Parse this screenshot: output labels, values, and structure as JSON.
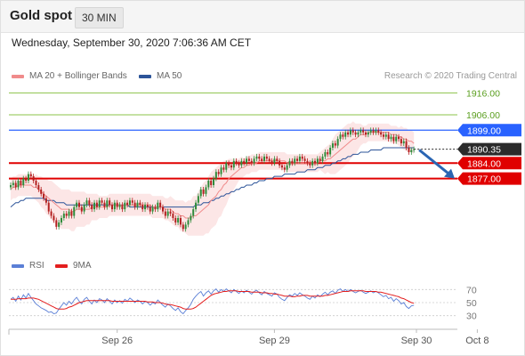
{
  "header": {
    "title": "Gold spot",
    "timeframe": "30 MIN"
  },
  "datetime": "Wednesday, September 30, 2020 7:06:36 AM CET",
  "legend": {
    "ma20": {
      "label": "MA 20 + Bollinger Bands",
      "color": "#f08b8b"
    },
    "ma50": {
      "label": "MA 50",
      "color": "#2c5499"
    },
    "rsi": {
      "label": "RSI",
      "color": "#5b7fd6"
    },
    "nine_ma": {
      "label": "9MA",
      "color": "#e31e1e"
    }
  },
  "credit": "Research © 2020 Trading Central",
  "colors": {
    "up": "#2e8b3a",
    "down": "#b32020",
    "resistance": "#8bc34a",
    "support": "#e00000",
    "pivot": "#2962ff",
    "current": "#2b2b2b"
  },
  "chart_data": {
    "type": "candlestick",
    "instrument": "Gold spot",
    "timeframe": "30 MIN",
    "ylim": [
      1844,
      1921
    ],
    "x_labels": [
      {
        "label": "Sep 26",
        "index": 42
      },
      {
        "label": "Sep 29",
        "index": 104
      },
      {
        "label": "Sep 30",
        "index": 160
      },
      {
        "label": "Oct 8",
        "index": 184
      }
    ],
    "levels": [
      {
        "value": "1916.00",
        "kind": "resistance"
      },
      {
        "value": "1906.00",
        "kind": "resistance"
      },
      {
        "value": "1899.00",
        "kind": "pivot"
      },
      {
        "value": "1890.35",
        "kind": "current"
      },
      {
        "value": "1884.00",
        "kind": "support"
      },
      {
        "value": "1877.00",
        "kind": "support"
      }
    ],
    "close": [
      1874,
      1875,
      1873,
      1876,
      1874,
      1877,
      1876,
      1879,
      1878,
      1876,
      1874,
      1872,
      1870,
      1868,
      1866,
      1862,
      1860,
      1858,
      1855,
      1857,
      1859,
      1861,
      1860,
      1862,
      1860,
      1864,
      1866,
      1864,
      1862,
      1865,
      1867,
      1865,
      1863,
      1866,
      1864,
      1867,
      1866,
      1864,
      1867,
      1865,
      1863,
      1866,
      1864,
      1865,
      1863,
      1866,
      1865,
      1867,
      1866,
      1864,
      1866,
      1865,
      1863,
      1865,
      1864,
      1862,
      1864,
      1863,
      1866,
      1864,
      1862,
      1860,
      1862,
      1861,
      1859,
      1857,
      1859,
      1856,
      1854,
      1856,
      1858,
      1860,
      1863,
      1866,
      1869,
      1872,
      1870,
      1873,
      1876,
      1874,
      1877,
      1880,
      1879,
      1882,
      1881,
      1884,
      1883,
      1882,
      1885,
      1884,
      1883,
      1885,
      1884,
      1886,
      1885,
      1884,
      1886,
      1887,
      1886,
      1885,
      1887,
      1886,
      1885,
      1884,
      1886,
      1885,
      1883,
      1882,
      1881,
      1883,
      1885,
      1884,
      1886,
      1885,
      1887,
      1886,
      1885,
      1884,
      1883,
      1885,
      1884,
      1886,
      1885,
      1887,
      1889,
      1888,
      1891,
      1893,
      1892,
      1895,
      1897,
      1896,
      1898,
      1897,
      1899,
      1898,
      1897,
      1898,
      1899,
      1898,
      1897,
      1898,
      1899,
      1898,
      1899,
      1898,
      1897,
      1896,
      1897,
      1895,
      1896,
      1894,
      1896,
      1895,
      1893,
      1894,
      1891,
      1889,
      1890,
      1890.35
    ],
    "ma20": [
      1872,
      1873,
      1873,
      1874,
      1874,
      1874,
      1874,
      1874,
      1874,
      1873,
      1873,
      1872,
      1871,
      1870,
      1869,
      1868,
      1867,
      1866,
      1865,
      1864,
      1863,
      1863,
      1863,
      1863,
      1862,
      1862,
      1863,
      1863,
      1863,
      1863,
      1863,
      1863,
      1864,
      1864,
      1864,
      1864,
      1864,
      1864,
      1864,
      1865,
      1865,
      1865,
      1865,
      1865,
      1865,
      1865,
      1865,
      1865,
      1865,
      1865,
      1865,
      1865,
      1865,
      1865,
      1865,
      1865,
      1864,
      1864,
      1864,
      1864,
      1864,
      1863,
      1863,
      1863,
      1862,
      1861,
      1861,
      1860,
      1860,
      1859,
      1859,
      1859,
      1860,
      1860,
      1861,
      1862,
      1863,
      1864,
      1865,
      1867,
      1868,
      1869,
      1871,
      1872,
      1874,
      1875,
      1877,
      1878,
      1879,
      1880,
      1881,
      1882,
      1882,
      1883,
      1883,
      1884,
      1884,
      1884,
      1885,
      1885,
      1885,
      1885,
      1885,
      1885,
      1885,
      1885,
      1885,
      1885,
      1885,
      1884,
      1884,
      1884,
      1884,
      1884,
      1884,
      1884,
      1884,
      1884,
      1884,
      1884,
      1884,
      1884,
      1885,
      1885,
      1885,
      1886,
      1886,
      1887,
      1888,
      1889,
      1890,
      1891,
      1892,
      1893,
      1894,
      1895,
      1895,
      1896,
      1897,
      1897,
      1897,
      1898,
      1898,
      1898,
      1898,
      1898,
      1898,
      1898,
      1898,
      1898,
      1897,
      1897,
      1897,
      1896,
      1896,
      1895,
      1895,
      1894,
      1894,
      1893
    ],
    "ma50": [
      1864,
      1865,
      1866,
      1866,
      1867,
      1867,
      1868,
      1868,
      1868,
      1868,
      1868,
      1868,
      1868,
      1868,
      1867,
      1867,
      1867,
      1867,
      1866,
      1866,
      1866,
      1866,
      1865,
      1865,
      1865,
      1865,
      1865,
      1865,
      1865,
      1865,
      1865,
      1865,
      1865,
      1865,
      1865,
      1865,
      1865,
      1865,
      1865,
      1865,
      1865,
      1865,
      1865,
      1865,
      1865,
      1865,
      1865,
      1864,
      1864,
      1864,
      1864,
      1864,
      1864,
      1864,
      1864,
      1864,
      1864,
      1864,
      1864,
      1864,
      1864,
      1864,
      1864,
      1864,
      1864,
      1864,
      1864,
      1864,
      1864,
      1864,
      1864,
      1864,
      1864,
      1865,
      1865,
      1865,
      1866,
      1866,
      1866,
      1867,
      1867,
      1868,
      1868,
      1869,
      1869,
      1870,
      1870,
      1871,
      1871,
      1872,
      1872,
      1873,
      1873,
      1874,
      1874,
      1874,
      1875,
      1875,
      1876,
      1876,
      1876,
      1877,
      1877,
      1877,
      1878,
      1878,
      1878,
      1878,
      1879,
      1879,
      1879,
      1879,
      1879,
      1880,
      1880,
      1880,
      1880,
      1881,
      1881,
      1881,
      1881,
      1882,
      1882,
      1882,
      1883,
      1883,
      1883,
      1884,
      1884,
      1885,
      1885,
      1886,
      1886,
      1887,
      1887,
      1888,
      1888,
      1888,
      1889,
      1889,
      1889,
      1889,
      1890,
      1890,
      1890,
      1890,
      1890,
      1891,
      1891,
      1891,
      1891,
      1891,
      1891,
      1891,
      1891,
      1891,
      1891,
      1891,
      1891,
      1891
    ],
    "bb_width": [
      5,
      5,
      5,
      5,
      5,
      5,
      5,
      5,
      5,
      5,
      6,
      6,
      7,
      7,
      8,
      8,
      9,
      9,
      9,
      9,
      9,
      9,
      9,
      9,
      9,
      9,
      8,
      8,
      8,
      8,
      7,
      7,
      6,
      6,
      6,
      5,
      5,
      5,
      5,
      5,
      5,
      5,
      5,
      5,
      5,
      5,
      5,
      5,
      5,
      5,
      5,
      5,
      5,
      5,
      5,
      5,
      5,
      5,
      5,
      5,
      5,
      5,
      5,
      6,
      6,
      6,
      6,
      7,
      7,
      7,
      8,
      8,
      9,
      9,
      10,
      11,
      12,
      12,
      13,
      13,
      13,
      13,
      12,
      12,
      11,
      10,
      9,
      8,
      7,
      6,
      5,
      5,
      4,
      4,
      4,
      4,
      4,
      4,
      4,
      4,
      4,
      4,
      4,
      4,
      4,
      4,
      4,
      4,
      4,
      4,
      4,
      4,
      4,
      4,
      4,
      4,
      4,
      4,
      4,
      4,
      4,
      4,
      4,
      5,
      6,
      6,
      7,
      8,
      9,
      9,
      9,
      9,
      9,
      9,
      8,
      8,
      7,
      6,
      5,
      4,
      4,
      4,
      4,
      4,
      4,
      4,
      4,
      4,
      4,
      4,
      4,
      4,
      4,
      4,
      5,
      5,
      5,
      5,
      5,
      5
    ],
    "rsi_levels": [
      "70",
      "50",
      "30"
    ],
    "rsi": [
      55,
      58,
      52,
      60,
      54,
      62,
      57,
      64,
      58,
      53,
      48,
      45,
      42,
      40,
      38,
      35,
      36,
      33,
      34,
      40,
      45,
      50,
      46,
      52,
      48,
      54,
      58,
      52,
      48,
      55,
      58,
      52,
      48,
      54,
      50,
      56,
      54,
      50,
      56,
      52,
      48,
      54,
      50,
      53,
      49,
      55,
      52,
      57,
      54,
      50,
      54,
      52,
      48,
      52,
      50,
      46,
      50,
      48,
      54,
      50,
      46,
      43,
      48,
      45,
      41,
      38,
      42,
      36,
      33,
      38,
      42,
      47,
      55,
      60,
      64,
      67,
      60,
      65,
      68,
      63,
      68,
      71,
      66,
      70,
      67,
      71,
      68,
      65,
      70,
      67,
      64,
      68,
      65,
      69,
      66,
      63,
      67,
      69,
      65,
      62,
      67,
      64,
      62,
      60,
      65,
      63,
      58,
      55,
      53,
      58,
      62,
      60,
      64,
      61,
      65,
      62,
      60,
      57,
      55,
      60,
      57,
      62,
      59,
      63,
      66,
      62,
      66,
      68,
      64,
      69,
      71,
      67,
      70,
      67,
      70,
      67,
      65,
      67,
      69,
      66,
      64,
      66,
      68,
      65,
      67,
      65,
      62,
      59,
      61,
      56,
      58,
      52,
      56,
      53,
      48,
      50,
      44,
      41,
      45,
      46
    ],
    "rsi_ma": [
      55,
      55,
      55,
      56,
      56,
      56,
      56,
      57,
      57,
      57,
      56,
      55,
      53,
      51,
      49,
      47,
      45,
      43,
      41,
      40,
      40,
      40,
      41,
      43,
      44,
      46,
      48,
      50,
      51,
      52,
      53,
      53,
      53,
      53,
      53,
      53,
      53,
      53,
      53,
      53,
      52,
      52,
      52,
      52,
      52,
      52,
      52,
      52,
      52,
      52,
      52,
      52,
      52,
      52,
      51,
      51,
      51,
      50,
      50,
      50,
      49,
      48,
      47,
      47,
      46,
      45,
      44,
      43,
      41,
      40,
      40,
      40,
      41,
      43,
      46,
      49,
      52,
      55,
      58,
      61,
      63,
      64,
      65,
      66,
      67,
      67,
      68,
      68,
      68,
      68,
      67,
      67,
      67,
      67,
      67,
      66,
      66,
      66,
      66,
      65,
      65,
      65,
      64,
      64,
      63,
      63,
      62,
      61,
      60,
      60,
      60,
      59,
      59,
      60,
      60,
      61,
      61,
      61,
      60,
      60,
      60,
      60,
      60,
      60,
      61,
      61,
      62,
      63,
      64,
      65,
      66,
      67,
      67,
      67,
      68,
      68,
      68,
      68,
      68,
      68,
      67,
      67,
      67,
      67,
      67,
      66,
      66,
      65,
      64,
      63,
      62,
      61,
      60,
      59,
      57,
      56,
      54,
      52,
      50,
      49
    ]
  }
}
